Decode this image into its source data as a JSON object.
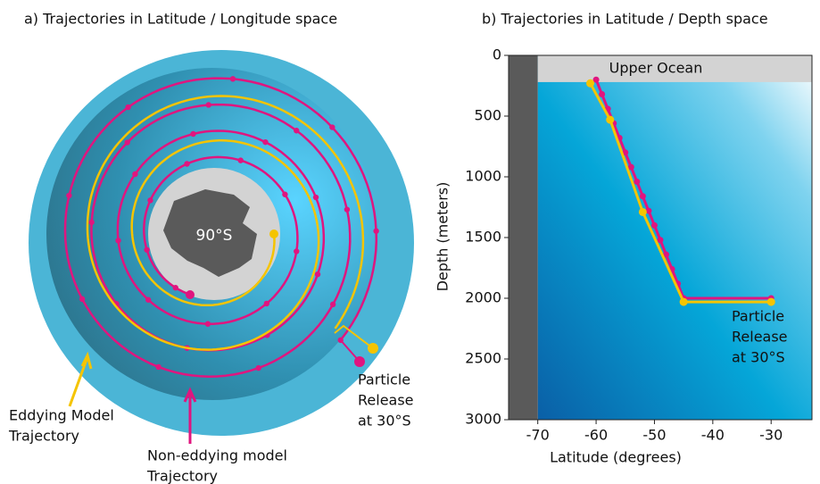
{
  "chart_data": [
    {
      "type": "diagram",
      "title": "a) Trajectories in Latitude / Longitude space",
      "center_label": "90°S",
      "annotations": [
        [
          "Eddying Model",
          "Trajectory"
        ],
        [
          "Non-eddying model",
          "Trajectory"
        ],
        [
          "Particle",
          "Release",
          "at 30°S"
        ]
      ],
      "colors": [
        "#f5c400",
        "#e0157f"
      ]
    },
    {
      "type": "line",
      "title": "b) Trajectories in Latitude / Depth space",
      "xlabel": "Latitude (degrees)",
      "ylabel": "Depth (meters)",
      "xlim": [
        -75,
        -23
      ],
      "ylim": [
        3000,
        0
      ],
      "xticks": [
        -70,
        -60,
        -50,
        -40,
        -30
      ],
      "yticks": [
        0,
        500,
        1000,
        1500,
        2000,
        2500,
        3000
      ],
      "land_lim": [
        -75,
        -70
      ],
      "upper_ocean_depth": 220,
      "annotations": [
        "Upper Ocean",
        [
          "Particle",
          "Release",
          "at 30°S"
        ]
      ],
      "series": [
        {
          "color": "#e0157f",
          "x": [
            -60,
            -59,
            -58,
            -57,
            -56,
            -55,
            -54,
            -53,
            -52,
            -51,
            -50,
            -49,
            -48,
            -47,
            -46,
            -45,
            -30
          ],
          "values": [
            200,
            320,
            440,
            560,
            680,
            800,
            920,
            1040,
            1160,
            1280,
            1400,
            1520,
            1640,
            1760,
            1880,
            2000,
            2000
          ]
        },
        {
          "color": "#f5c400",
          "x": [
            -61,
            -57.6,
            -52,
            -45,
            -30
          ],
          "values": [
            230,
            530,
            1290,
            2030,
            2030
          ]
        }
      ]
    }
  ]
}
